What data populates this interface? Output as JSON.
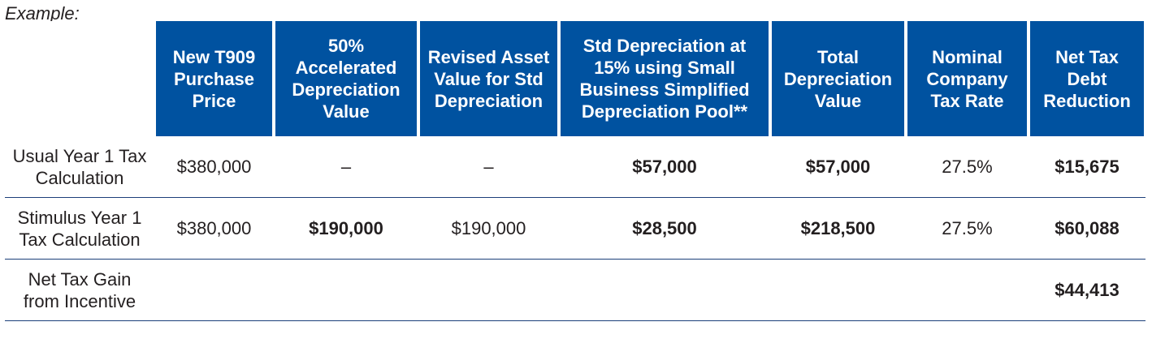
{
  "example_label": "Example:",
  "columns": [
    "New T909 Purchase Price",
    "50% Accelerated Depreciation Value",
    "Revised Asset Value for Std Depreciation",
    "Std Depreciation at 15% using Small Business Simplified Depreciation Pool**",
    "Total Depreciation Value",
    "Nominal Company Tax Rate",
    "Net Tax Debt Reduction"
  ],
  "rows": [
    {
      "label": "Usual Year 1 Tax Calculation",
      "cells": [
        "$380,000",
        "–",
        "–",
        "$57,000",
        "$57,000",
        "27.5%",
        "$15,675"
      ]
    },
    {
      "label": "Stimulus Year 1 Tax Calculation",
      "cells": [
        "$380,000",
        "$190,000",
        "$190,000",
        "$28,500",
        "$218,500",
        "27.5%",
        "$60,088"
      ]
    },
    {
      "label": "Net Tax Gain from Incentive",
      "cells": [
        "",
        "",
        "",
        "",
        "",
        "",
        "$44,413"
      ]
    }
  ],
  "colors": {
    "header_bg": "#0052a0",
    "header_text": "#ffffff",
    "rule": "#1c3f7a"
  }
}
